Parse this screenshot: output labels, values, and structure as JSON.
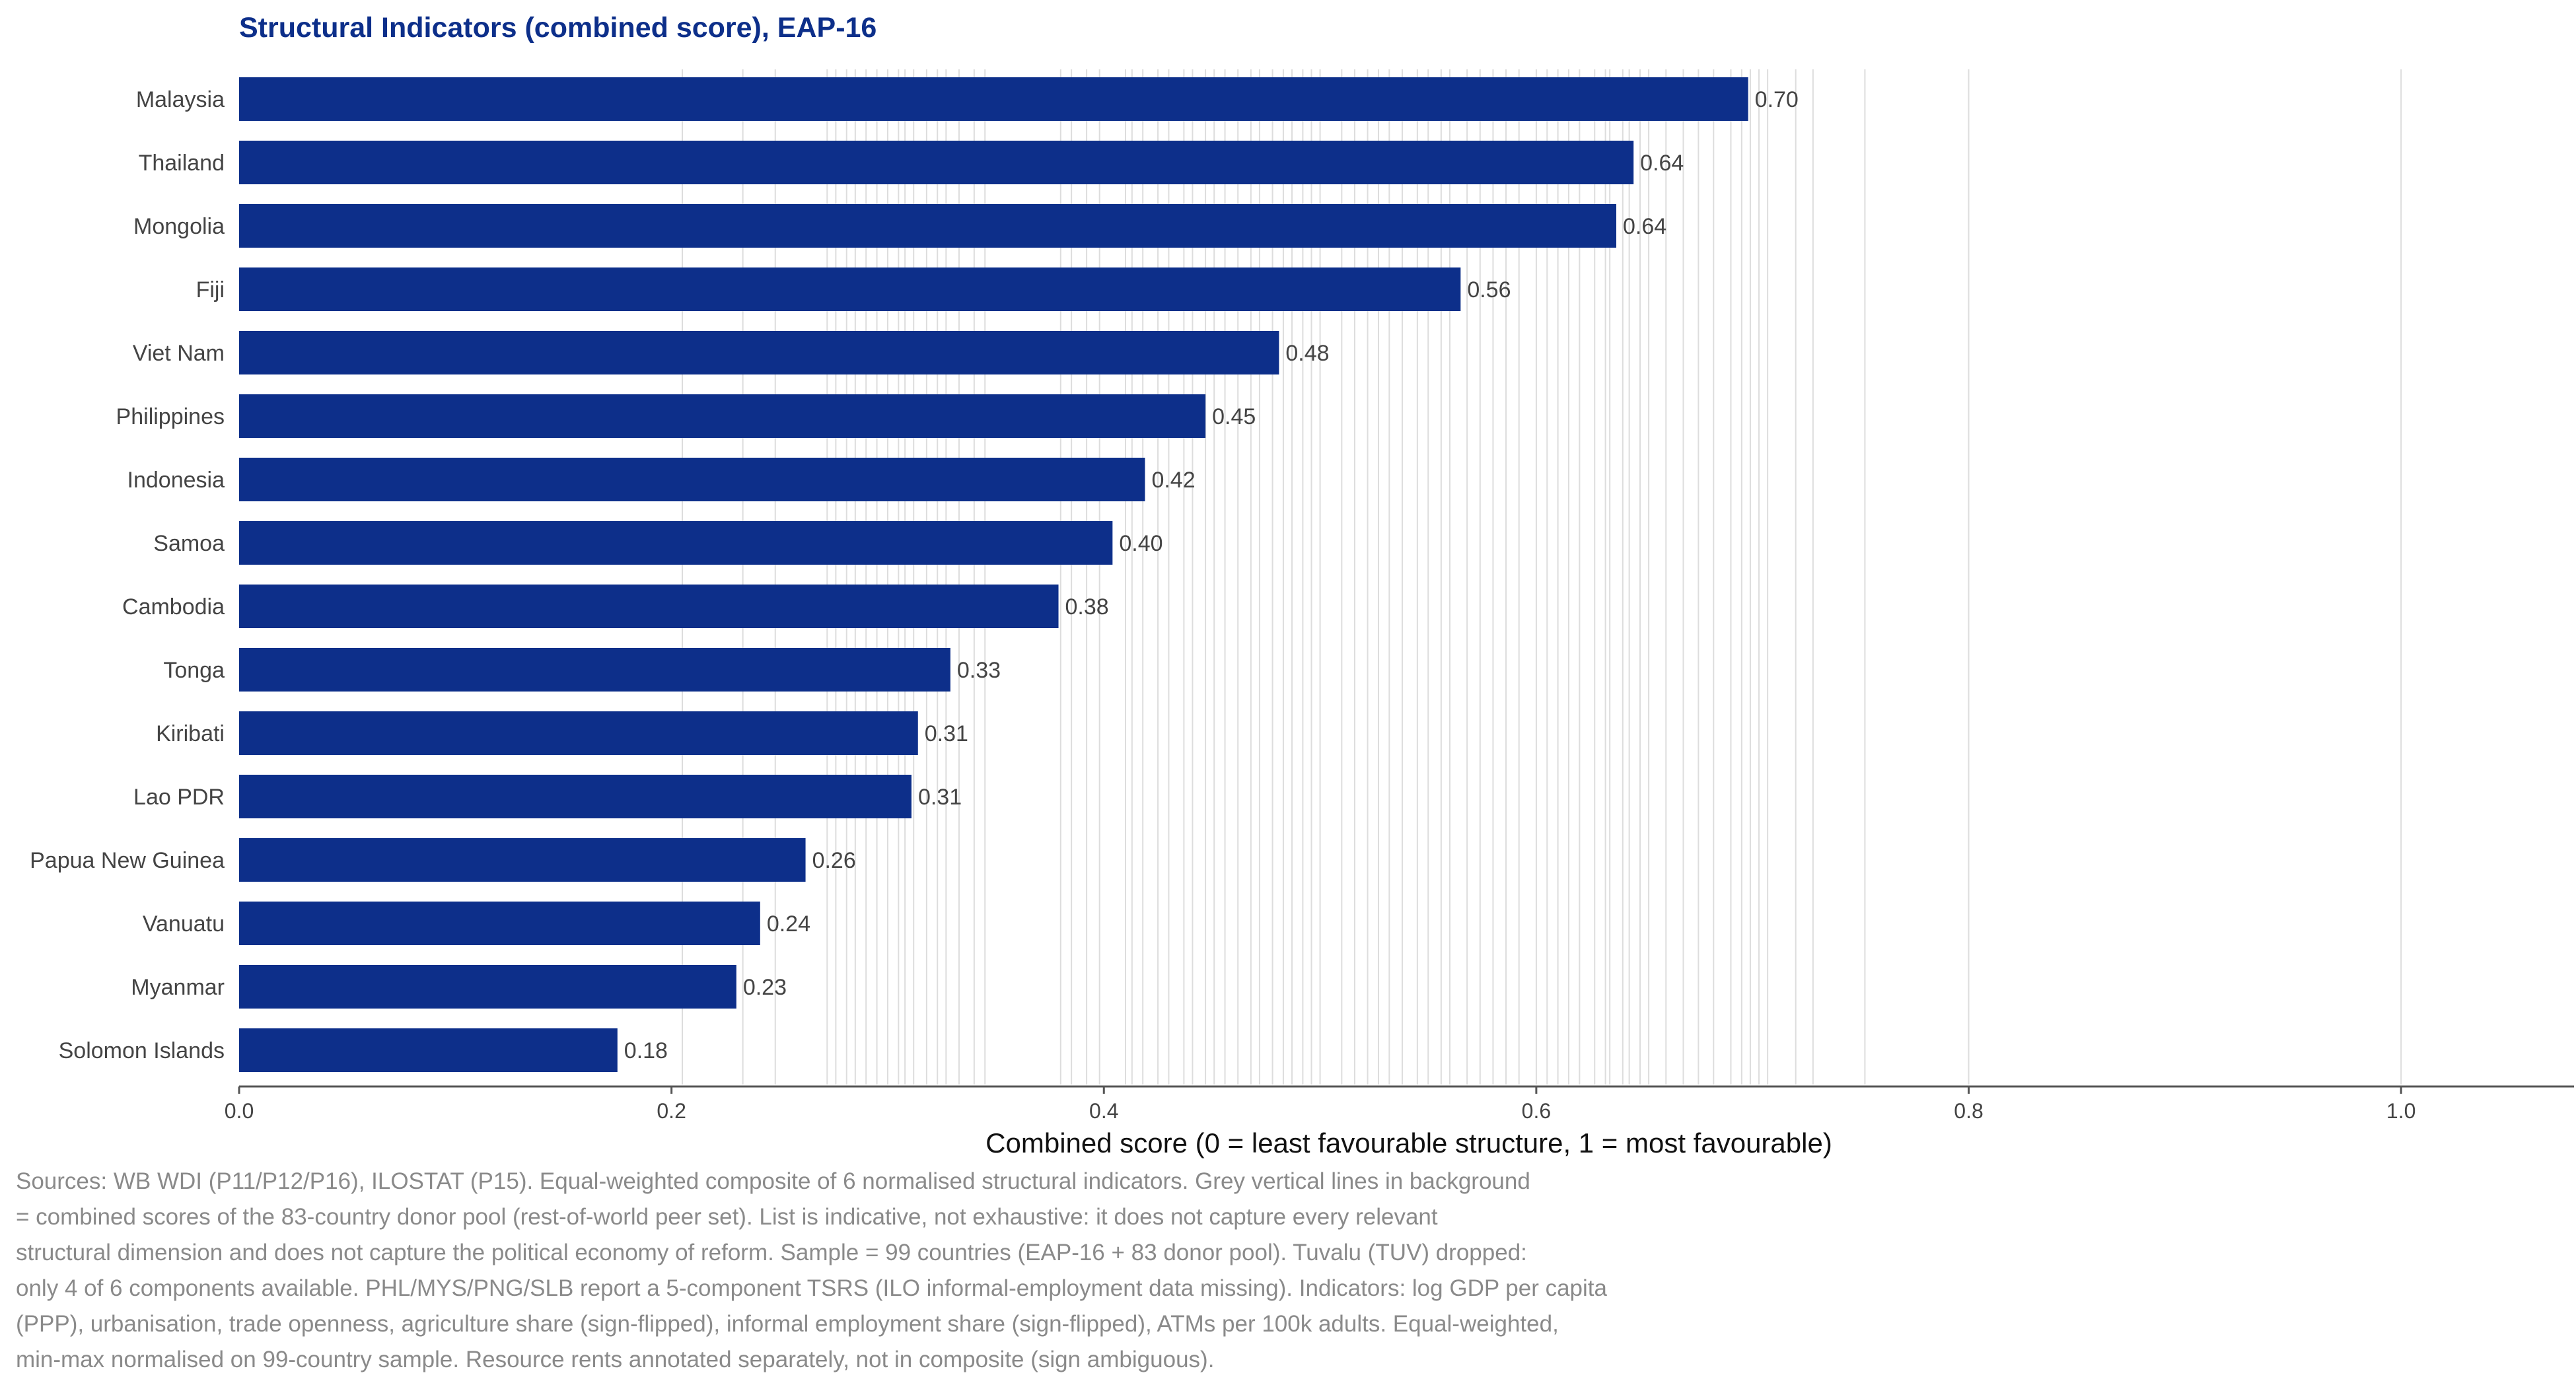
{
  "chart_data": {
    "type": "bar",
    "orientation": "horizontal",
    "title": "Structural Indicators (combined score), EAP-16",
    "xlabel": "Combined score (0 = least favourable structure, 1 = most favourable)",
    "ylabel": "",
    "xlim": [
      0,
      1.08
    ],
    "xticks": [
      0.0,
      0.2,
      0.4,
      0.6,
      0.8,
      1.0
    ],
    "xtick_labels": [
      "0.0",
      "0.2",
      "0.4",
      "0.6",
      "0.8",
      "1.0"
    ],
    "bar_color": "#0d2f8a",
    "grid_color": "#dddddd",
    "categories": [
      "Malaysia",
      "Thailand",
      "Mongolia",
      "Fiji",
      "Viet Nam",
      "Philippines",
      "Indonesia",
      "Samoa",
      "Cambodia",
      "Tonga",
      "Kiribati",
      "Lao PDR",
      "Papua New Guinea",
      "Vanuatu",
      "Myanmar",
      "Solomon Islands"
    ],
    "values": [
      0.698,
      0.645,
      0.637,
      0.565,
      0.481,
      0.447,
      0.419,
      0.404,
      0.379,
      0.329,
      0.314,
      0.311,
      0.262,
      0.241,
      0.23,
      0.175
    ],
    "value_labels": [
      "0.70",
      "0.64",
      "0.64",
      "0.56",
      "0.48",
      "0.45",
      "0.42",
      "0.40",
      "0.38",
      "0.33",
      "0.31",
      "0.31",
      "0.26",
      "0.24",
      "0.23",
      "0.18"
    ],
    "peer_scores": [
      0.205,
      0.233,
      0.248,
      0.272,
      0.276,
      0.281,
      0.285,
      0.29,
      0.295,
      0.3,
      0.305,
      0.308,
      0.312,
      0.318,
      0.323,
      0.327,
      0.333,
      0.34,
      0.345,
      0.38,
      0.385,
      0.392,
      0.398,
      0.41,
      0.413,
      0.418,
      0.425,
      0.43,
      0.437,
      0.441,
      0.447,
      0.451,
      0.456,
      0.462,
      0.468,
      0.472,
      0.478,
      0.483,
      0.487,
      0.492,
      0.496,
      0.5,
      0.51,
      0.516,
      0.522,
      0.527,
      0.532,
      0.538,
      0.545,
      0.55,
      0.556,
      0.56,
      0.568,
      0.574,
      0.58,
      0.586,
      0.592,
      0.6,
      0.605,
      0.61,
      0.615,
      0.62,
      0.627,
      0.632,
      0.634,
      0.64,
      0.643,
      0.648,
      0.652,
      0.66,
      0.668,
      0.675,
      0.682,
      0.69,
      0.695,
      0.699,
      0.703,
      0.707,
      0.72,
      0.728,
      0.752,
      0.8,
      1.0
    ],
    "footnote_lines": [
      "Sources: WB WDI (P11/P12/P16), ILOSTAT (P15). Equal-weighted composite of 6 normalised structural indicators. Grey vertical lines in background",
      "= combined scores of the 83-country donor pool (rest-of-world peer set). List is indicative, not exhaustive: it does not capture every relevant",
      "structural dimension and does not capture the political economy of reform. Sample = 99 countries (EAP-16 + 83 donor pool). Tuvalu (TUV) dropped:",
      "only 4 of 6 components available. PHL/MYS/PNG/SLB report a 5-component TSRS (ILO informal-employment data missing). Indicators: log GDP per capita",
      "(PPP), urbanisation, trade openness, agriculture share (sign-flipped), informal employment share (sign-flipped), ATMs per 100k adults. Equal-weighted,",
      "min-max normalised on 99-country sample. Resource rents annotated separately, not in composite (sign ambiguous)."
    ]
  }
}
